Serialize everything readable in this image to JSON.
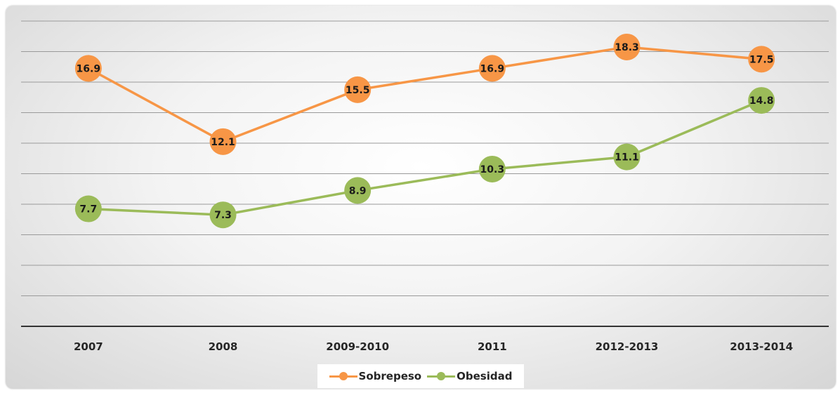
{
  "chart_data": {
    "type": "line",
    "categories": [
      "2007",
      "2008",
      "2009-2010",
      "2011",
      "2012-2013",
      "2013-2014"
    ],
    "series": [
      {
        "name": "Sobrepeso",
        "values": [
          16.9,
          12.1,
          15.5,
          16.9,
          18.3,
          17.5
        ],
        "color": "#f79646"
      },
      {
        "name": "Obesidad",
        "values": [
          7.7,
          7.3,
          8.9,
          10.3,
          11.1,
          14.8
        ],
        "color": "#9bbb59"
      }
    ],
    "ylim": [
      0,
      20
    ],
    "grid": true,
    "legend_position": "bottom",
    "data_labels": true
  }
}
